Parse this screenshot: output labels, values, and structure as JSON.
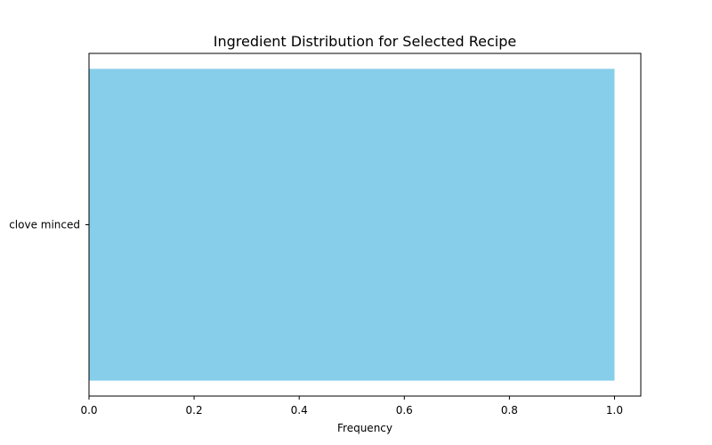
{
  "chart_data": {
    "type": "bar",
    "orientation": "horizontal",
    "title": "Ingredient Distribution for Selected Recipe",
    "xlabel": "Frequency",
    "ylabel": "",
    "categories": [
      "clove minced"
    ],
    "values": [
      1.0
    ],
    "xlim": [
      0,
      1.05
    ],
    "x_ticks": [
      "0.0",
      "0.2",
      "0.4",
      "0.6",
      "0.8",
      "1.0"
    ],
    "grid": false,
    "legend": "none",
    "bar_color": "#87ceeb",
    "axis_color": "#000000"
  }
}
